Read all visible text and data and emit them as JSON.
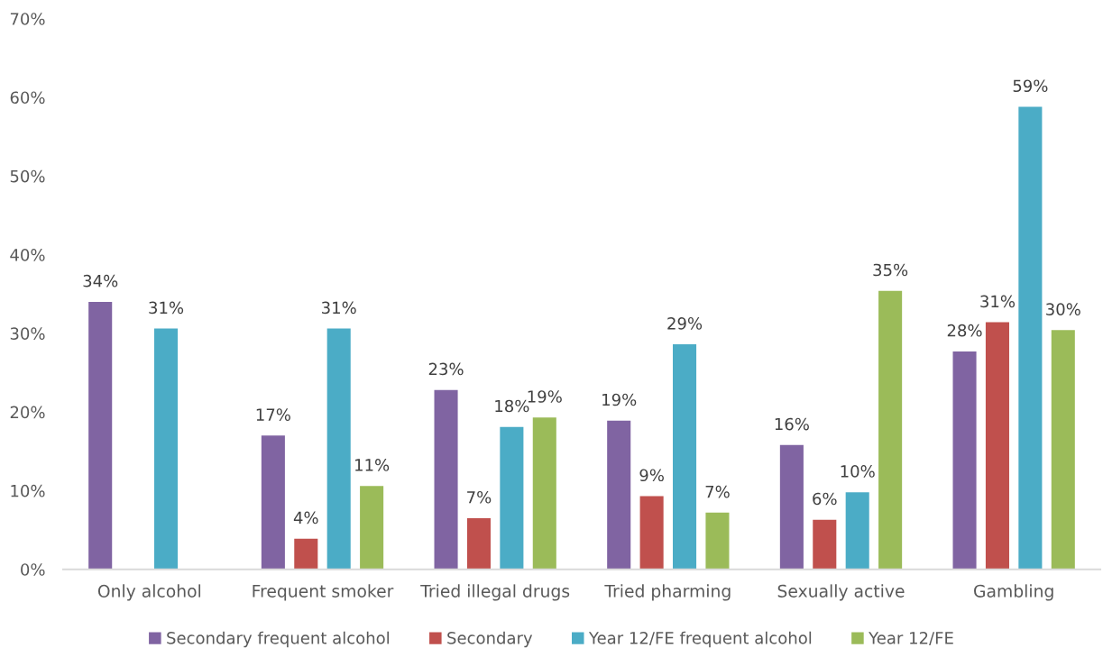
{
  "chart_data": {
    "type": "bar",
    "categories": [
      "Only alcohol",
      "Frequent smoker",
      "Tried illegal drugs",
      "Tried pharming",
      "Sexually active",
      "Gambling"
    ],
    "series": [
      {
        "name": "Secondary frequent alcohol",
        "color": "#8064a2",
        "values": [
          34.0,
          17.0,
          22.8,
          18.9,
          15.8,
          27.7
        ],
        "value_labels": [
          "34%",
          "17%",
          "23%",
          "19%",
          "16%",
          "28%"
        ]
      },
      {
        "name": "Secondary",
        "color": "#c0504d",
        "values": [
          null,
          3.9,
          6.5,
          9.3,
          6.3,
          31.4
        ],
        "value_labels": [
          null,
          "4%",
          "7%",
          "9%",
          "6%",
          "31%"
        ]
      },
      {
        "name": "Year 12/FE frequent alcohol",
        "color": "#4bacc6",
        "values": [
          30.6,
          30.6,
          18.1,
          28.6,
          9.8,
          58.8
        ],
        "value_labels": [
          "31%",
          "31%",
          "18%",
          "29%",
          "10%",
          "59%"
        ]
      },
      {
        "name": "Year 12/FE",
        "color": "#9bbb59",
        "values": [
          null,
          10.6,
          19.3,
          7.2,
          35.4,
          30.4
        ],
        "value_labels": [
          null,
          "11%",
          "19%",
          "7%",
          "35%",
          "30%"
        ]
      }
    ],
    "ylim": [
      0,
      70
    ],
    "yticks": [
      {
        "value": 0,
        "label": "0%"
      },
      {
        "value": 10,
        "label": "10%"
      },
      {
        "value": 20,
        "label": "20%"
      },
      {
        "value": 30,
        "label": "30%"
      },
      {
        "value": 40,
        "label": "40%"
      },
      {
        "value": 50,
        "label": "50%"
      },
      {
        "value": 60,
        "label": "60%"
      },
      {
        "value": 70,
        "label": "70%"
      }
    ],
    "legend": "bottom"
  }
}
